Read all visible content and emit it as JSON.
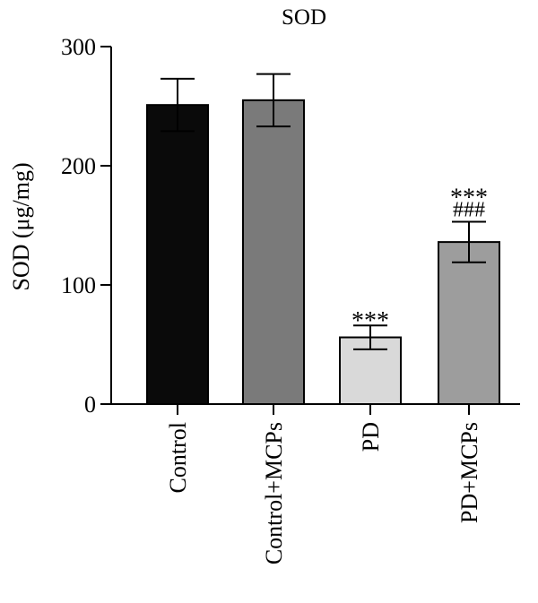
{
  "chart_data": {
    "type": "bar",
    "title": "SOD",
    "ylabel": "SOD (μg/mg)",
    "xlabel": "",
    "ylim": [
      0,
      300
    ],
    "yticks": [
      0,
      100,
      200,
      300
    ],
    "grid": false,
    "categories": [
      "Control",
      "Control+MCPs",
      "PD",
      "PD+MCPs"
    ],
    "values": [
      251,
      255,
      56,
      136
    ],
    "errors": [
      22,
      22,
      10,
      17
    ],
    "bar_colors": [
      "#0a0a0a",
      "#7a7a7a",
      "#d9d9d9",
      "#9d9d9d"
    ],
    "annotations": [
      {
        "category": "PD",
        "lines": [
          "***"
        ]
      },
      {
        "category": "PD+MCPs",
        "lines": [
          "***",
          "###"
        ]
      }
    ]
  }
}
